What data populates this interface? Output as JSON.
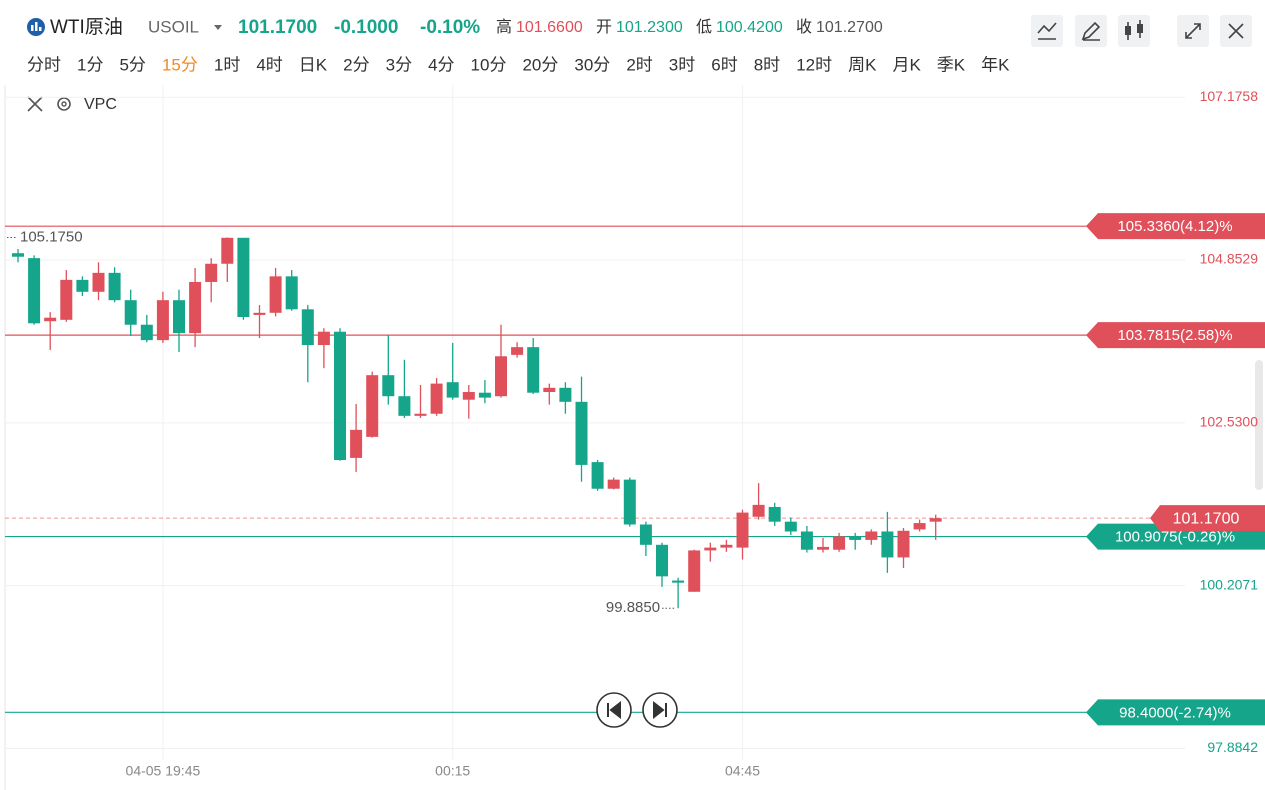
{
  "header": {
    "name": "WTI原油",
    "symbol": "USOIL",
    "price": "101.1700",
    "change": "-0.1000",
    "change_pct": "-0.10%",
    "stats": [
      {
        "label": "高",
        "value": "101.6600",
        "color": "#e0505a"
      },
      {
        "label": "开",
        "value": "101.2300",
        "color": "#14a58a"
      },
      {
        "label": "低",
        "value": "100.4200",
        "color": "#14a58a"
      },
      {
        "label": "收",
        "value": "101.2700",
        "color": "#555555"
      }
    ]
  },
  "timeframes": [
    "分时",
    "1分",
    "5分",
    "15分",
    "1时",
    "4时",
    "日K",
    "2分",
    "3分",
    "4分",
    "10分",
    "20分",
    "30分",
    "2时",
    "3时",
    "6时",
    "8时",
    "12时",
    "周K",
    "月K",
    "季K",
    "年K"
  ],
  "active_timeframe": 3,
  "indicator": "VPC",
  "chart_data": {
    "type": "candlestick",
    "up_color": "#e0505a",
    "down_color": "#14a58a",
    "categories": [
      null,
      null,
      null,
      null,
      null,
      null,
      null,
      null,
      null,
      "04-05 19:45",
      null,
      null,
      null,
      null,
      null,
      null,
      null,
      null,
      null,
      null,
      null,
      null,
      null,
      null,
      null,
      null,
      null,
      "00:15",
      null,
      null,
      null,
      null,
      null,
      null,
      null,
      null,
      null,
      null,
      null,
      null,
      null,
      null,
      null,
      null,
      null,
      "04:45",
      null,
      null,
      null,
      null,
      null,
      null,
      null,
      null,
      null,
      null,
      null,
      null
    ],
    "open": [
      104.95,
      104.88,
      103.98,
      104.0,
      104.57,
      104.4,
      104.67,
      104.28,
      103.93,
      103.71,
      104.28,
      103.81,
      104.54,
      104.8,
      105.17,
      104.07,
      104.1,
      104.62,
      104.15,
      103.64,
      103.83,
      102.03,
      102.33,
      103.21,
      102.91,
      102.63,
      102.66,
      103.11,
      102.86,
      102.96,
      102.91,
      103.5,
      103.61,
      102.97,
      103.03,
      102.83,
      101.97,
      101.59,
      101.72,
      101.08,
      100.79,
      100.28,
      100.12,
      100.71,
      100.75,
      100.75,
      101.19,
      101.33,
      101.12,
      100.98,
      100.72,
      100.72,
      100.91,
      100.86,
      100.98,
      100.61,
      101.01,
      101.12
    ],
    "high": [
      105.01,
      104.92,
      104.11,
      104.71,
      104.62,
      104.82,
      104.75,
      104.43,
      104.07,
      104.4,
      104.43,
      104.74,
      104.88,
      105.175,
      105.17,
      104.21,
      104.74,
      104.71,
      104.21,
      103.88,
      103.88,
      102.8,
      103.26,
      103.78,
      103.43,
      103.07,
      103.17,
      103.67,
      103.07,
      103.14,
      103.93,
      103.68,
      103.74,
      103.09,
      103.11,
      103.19,
      102.0,
      101.75,
      101.75,
      101.12,
      100.82,
      100.32,
      100.72,
      100.82,
      100.86,
      101.29,
      101.67,
      101.39,
      101.18,
      101.06,
      100.89,
      100.96,
      100.96,
      101.01,
      101.26,
      101.03,
      101.15,
      101.22
    ],
    "low": [
      104.82,
      103.93,
      103.57,
      103.97,
      104.34,
      104.28,
      104.25,
      103.77,
      103.68,
      103.67,
      103.54,
      103.61,
      104.25,
      104.54,
      104.0,
      103.74,
      104.05,
      104.13,
      103.11,
      103.31,
      101.99,
      101.83,
      102.32,
      102.79,
      102.6,
      102.6,
      102.63,
      102.86,
      102.59,
      102.81,
      102.89,
      103.46,
      102.94,
      102.79,
      102.66,
      101.69,
      101.56,
      101.58,
      101.05,
      100.63,
      100.19,
      99.885,
      100.12,
      100.55,
      100.69,
      100.58,
      101.15,
      101.06,
      100.93,
      100.68,
      100.68,
      100.69,
      100.72,
      100.79,
      100.39,
      100.46,
      100.98,
      100.86
    ],
    "close": [
      104.9,
      103.95,
      104.03,
      104.57,
      104.4,
      104.67,
      104.28,
      103.93,
      103.71,
      104.28,
      103.81,
      104.54,
      104.8,
      105.17,
      104.04,
      104.1,
      104.62,
      104.15,
      103.64,
      103.83,
      102.0,
      102.43,
      103.21,
      102.91,
      102.63,
      102.66,
      103.09,
      102.89,
      102.97,
      102.89,
      103.48,
      103.61,
      102.96,
      103.03,
      102.83,
      101.93,
      101.59,
      101.72,
      101.08,
      100.79,
      100.34,
      100.25,
      100.71,
      100.75,
      100.79,
      101.25,
      101.36,
      101.12,
      100.98,
      100.72,
      100.76,
      100.91,
      100.86,
      100.98,
      100.61,
      100.99,
      101.1,
      101.17
    ],
    "ylim": [
      97.72,
      107.35
    ],
    "yticks": [
      107.1758,
      104.8529,
      {
        "value": 102.53,
        "label": "102.5300"
      },
      100.2071,
      97.8842
    ],
    "price_lines": [
      {
        "value": 105.336,
        "label": "105.3360(4.12)%",
        "color": "#e0505a"
      },
      {
        "value": 103.7815,
        "label": "103.7815(2.58)%",
        "color": "#e0505a"
      },
      {
        "value": 100.9075,
        "label": "100.9075(-0.26)%",
        "color": "#14a58a"
      },
      {
        "value": 98.4,
        "label": "98.4000(-2.74)%",
        "color": "#14a58a"
      }
    ],
    "last": {
      "value": 101.17,
      "label": "101.1700",
      "color": "#e0505a"
    },
    "high_label": "105.1750",
    "low_label": "99.8850"
  }
}
